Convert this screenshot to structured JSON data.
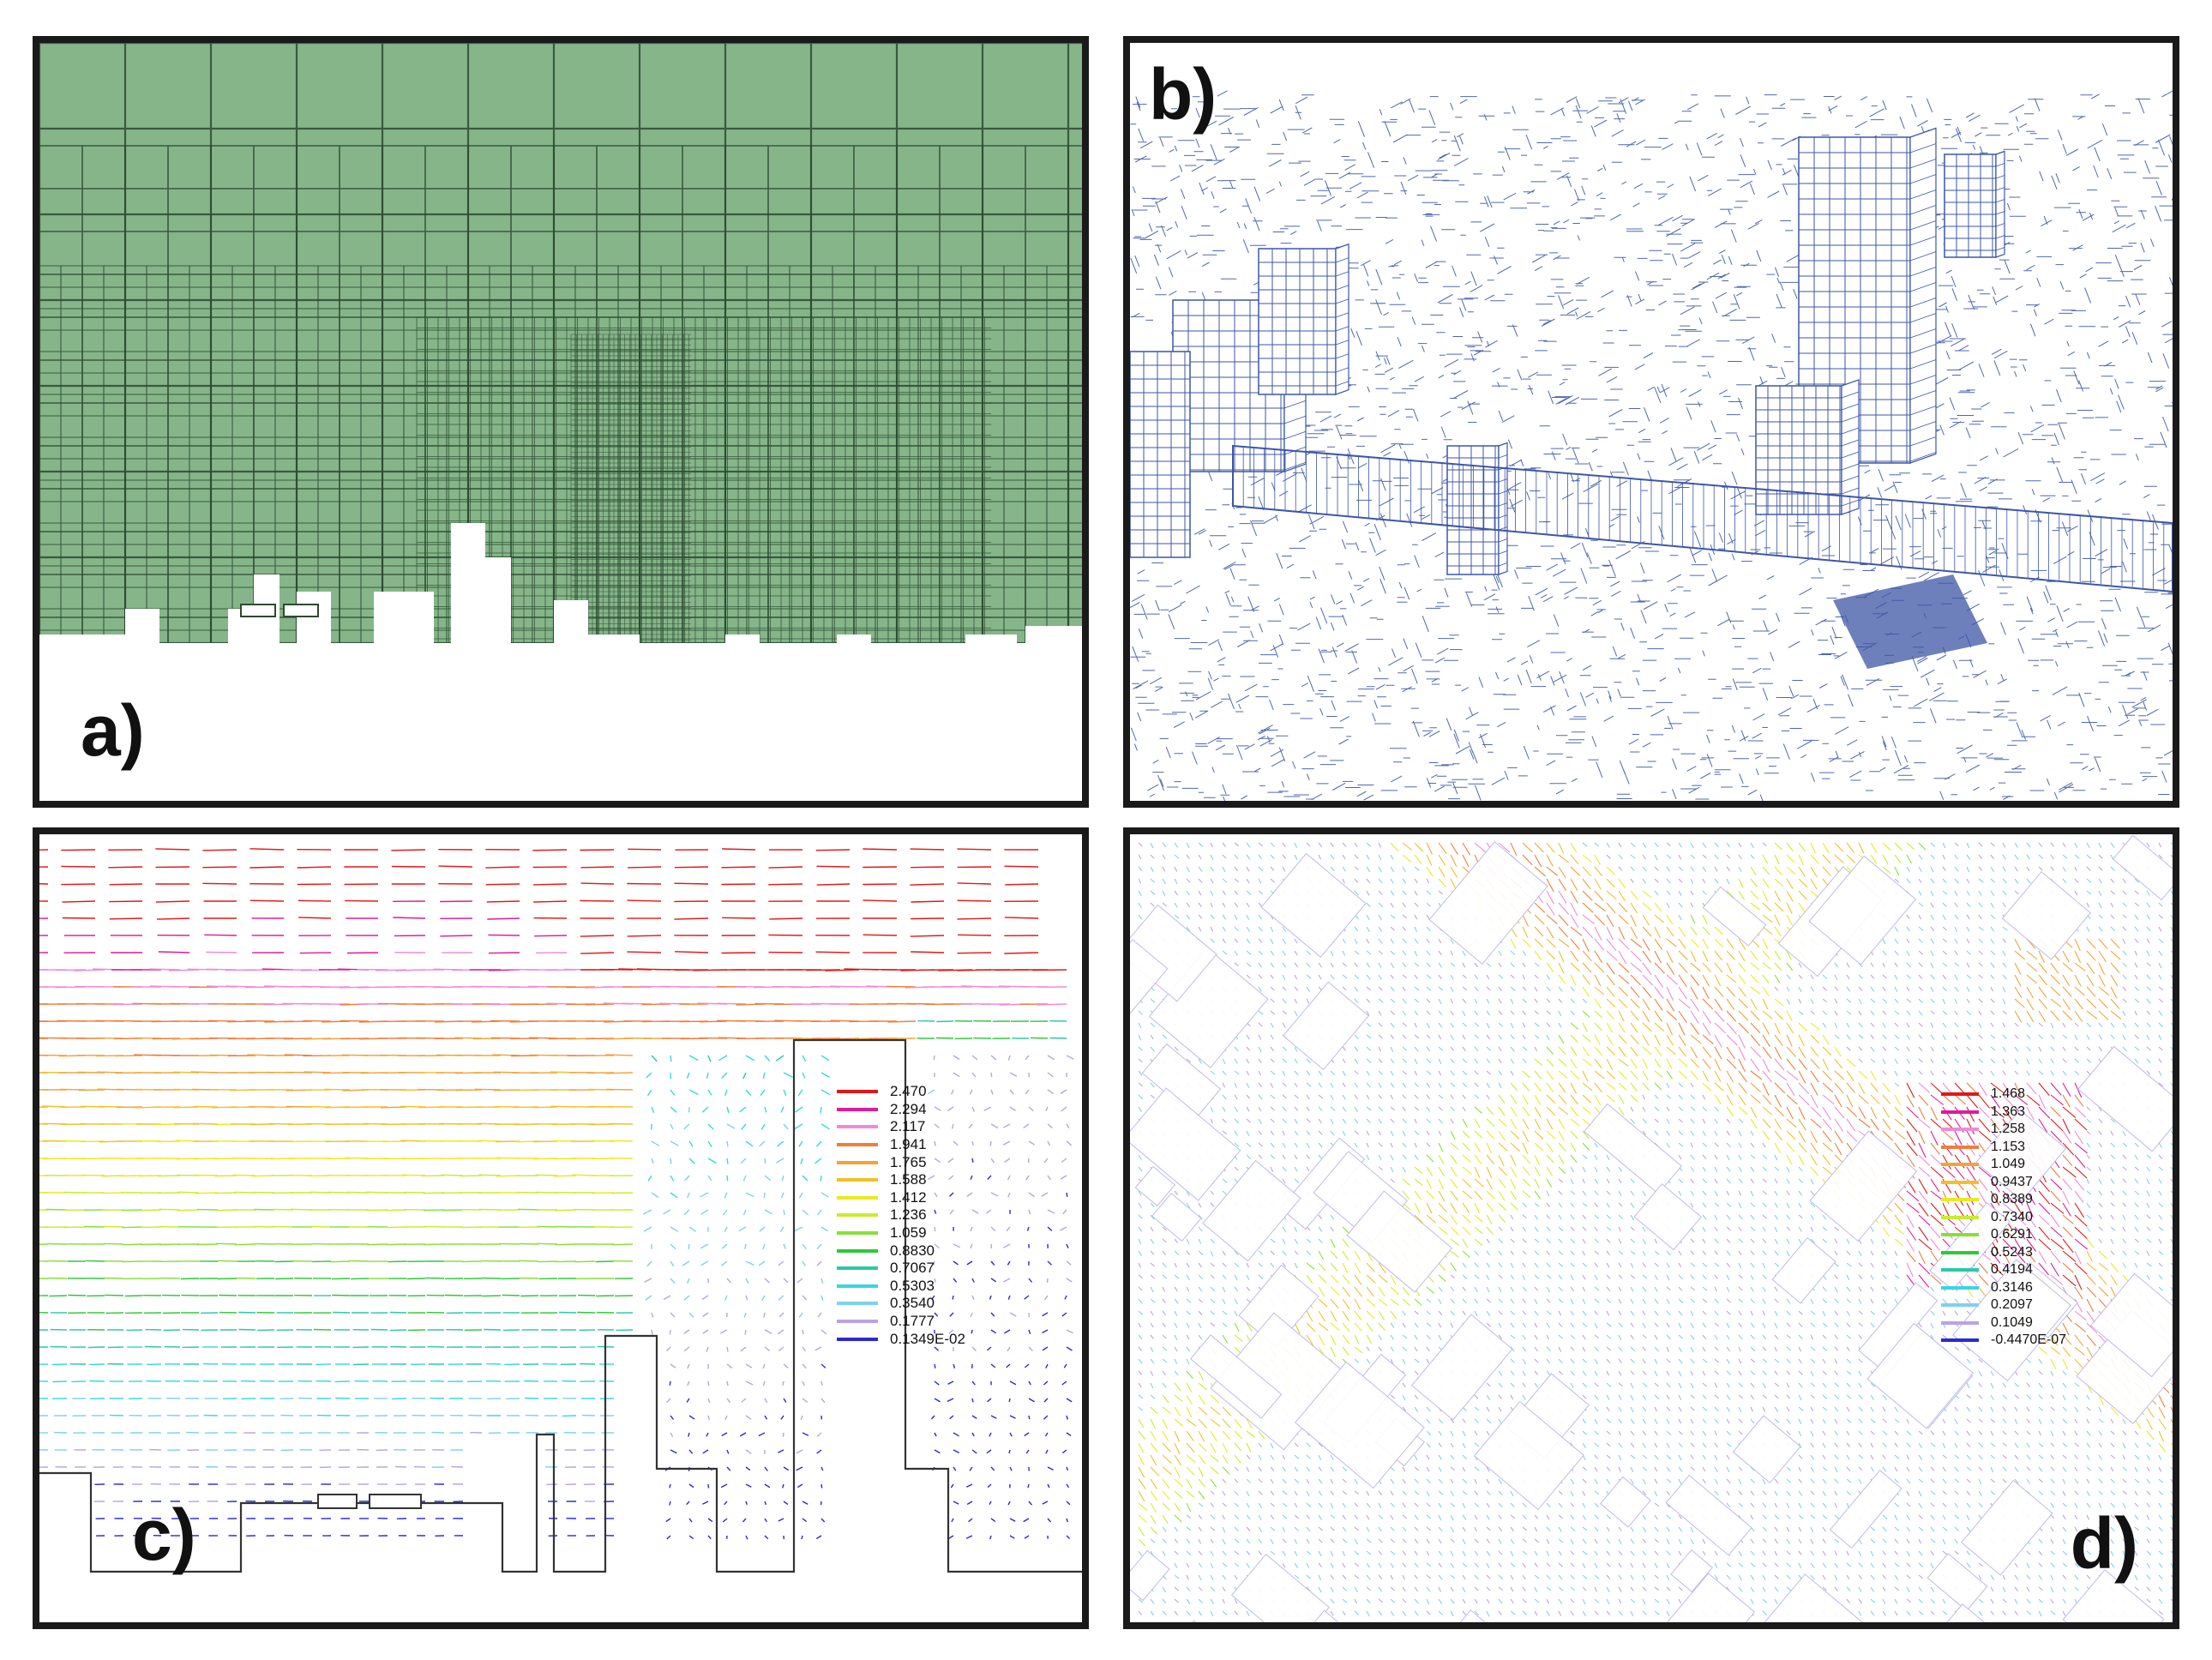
{
  "panels": {
    "a": {
      "label": "a)"
    },
    "b": {
      "label": "b)"
    },
    "c": {
      "label": "c)"
    },
    "d": {
      "label": "d)"
    }
  },
  "colors": {
    "mesh_fill": "#86b58a",
    "mesh_line": "#2c4a30",
    "wire": "#3d56a6",
    "border": "#1a1a1a"
  },
  "legend_c": [
    {
      "value": "2.470",
      "color": "#e01818"
    },
    {
      "value": "2.294",
      "color": "#e01a9a"
    },
    {
      "value": "2.117",
      "color": "#f08ad8"
    },
    {
      "value": "1.941",
      "color": "#f07d3c"
    },
    {
      "value": "1.765",
      "color": "#f2a33a"
    },
    {
      "value": "1.588",
      "color": "#f3bf2a"
    },
    {
      "value": "1.412",
      "color": "#eee81e"
    },
    {
      "value": "1.236",
      "color": "#c8ec2e"
    },
    {
      "value": "1.059",
      "color": "#86e03a"
    },
    {
      "value": "0.8830",
      "color": "#2fc83a"
    },
    {
      "value": "0.7067",
      "color": "#2bc8a8"
    },
    {
      "value": "0.5303",
      "color": "#3ad6e2"
    },
    {
      "value": "0.3540",
      "color": "#7fd0f0"
    },
    {
      "value": "0.1777",
      "color": "#b9a3e6"
    },
    {
      "value": "0.1349E-02",
      "color": "#2a2ad2"
    }
  ],
  "legend_d": [
    {
      "value": "1.468",
      "color": "#e01818"
    },
    {
      "value": "1.363",
      "color": "#e01a9a"
    },
    {
      "value": "1.258",
      "color": "#f08ad8"
    },
    {
      "value": "1.153",
      "color": "#f07d3c"
    },
    {
      "value": "1.049",
      "color": "#f2a33a"
    },
    {
      "value": "0.9437",
      "color": "#f3bf2a"
    },
    {
      "value": "0.8389",
      "color": "#eee81e"
    },
    {
      "value": "0.7340",
      "color": "#c8ec2e"
    },
    {
      "value": "0.6291",
      "color": "#86e03a"
    },
    {
      "value": "0.5243",
      "color": "#2fc83a"
    },
    {
      "value": "0.4194",
      "color": "#2bc8a8"
    },
    {
      "value": "0.3146",
      "color": "#3ad6e2"
    },
    {
      "value": "0.2097",
      "color": "#7fd0f0"
    },
    {
      "value": "0.1049",
      "color": "#b9a3e6"
    },
    {
      "value": "-0.4470E-07",
      "color": "#2a2ad2"
    }
  ]
}
